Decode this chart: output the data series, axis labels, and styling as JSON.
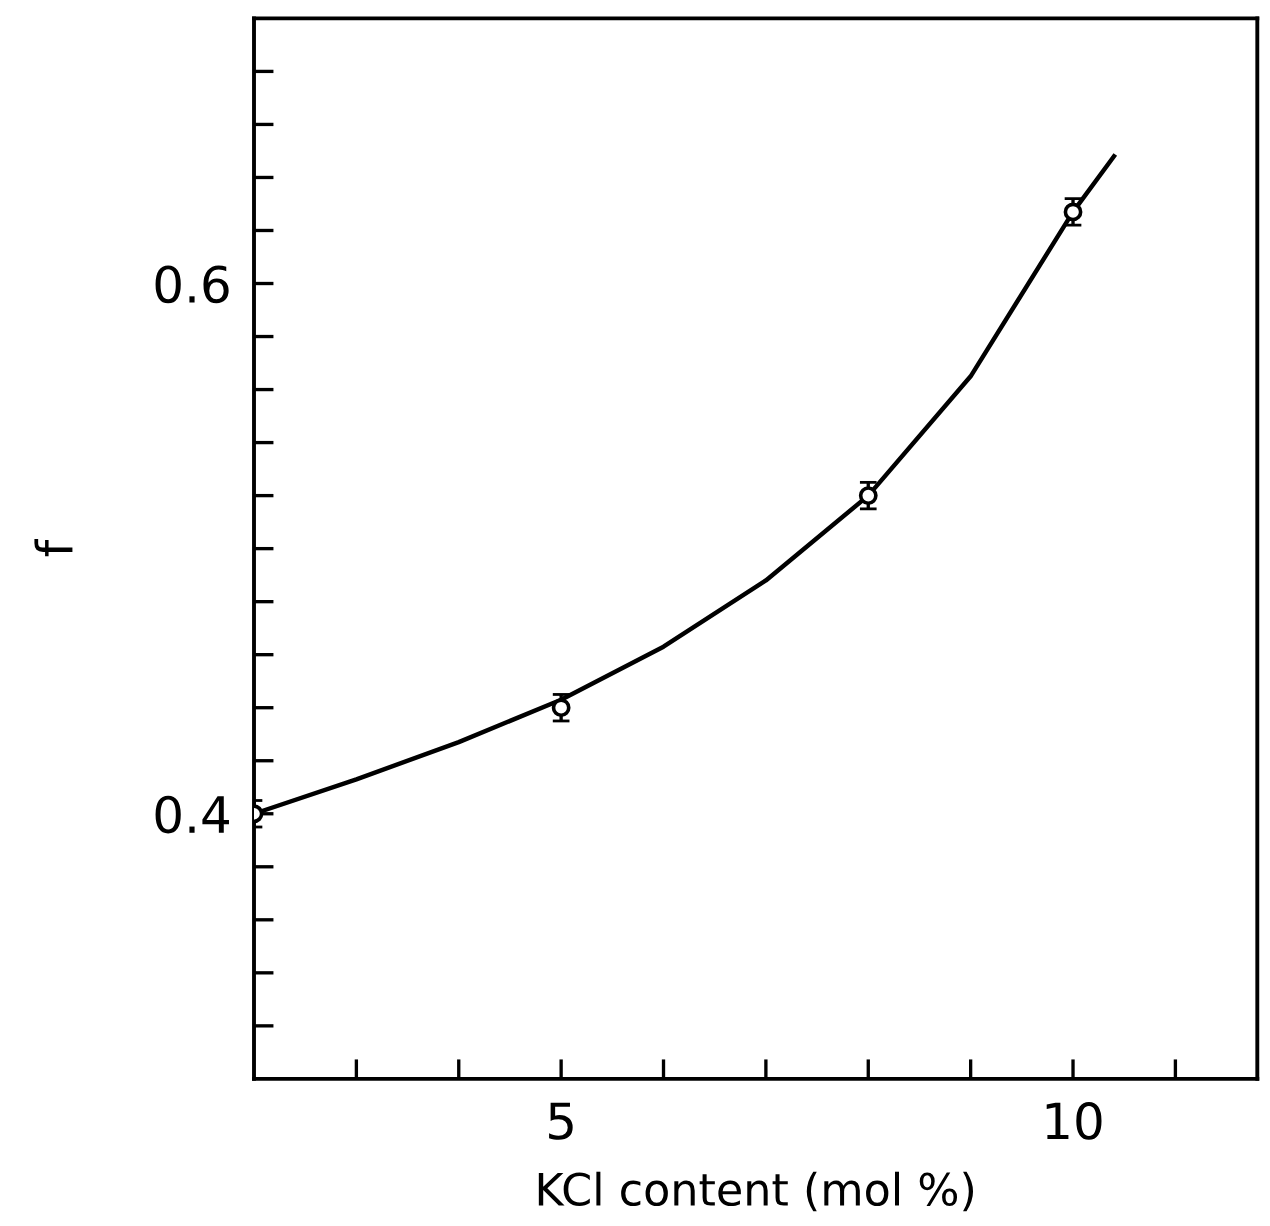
{
  "chart_data": {
    "type": "scatter",
    "xlabel": "KCl content (mol %)",
    "ylabel": "f",
    "series": [
      {
        "color": "#000000",
        "x": [
          2,
          5,
          8,
          10
        ],
        "values": [
          0.4,
          0.44,
          0.52,
          0.627
        ],
        "errors": [
          0.005,
          0.005,
          0.005,
          0.005
        ],
        "marker": "circle"
      },
      {
        "type": "line",
        "color": "#000000",
        "x": [
          2,
          3,
          4,
          5,
          6,
          7,
          8,
          9,
          10,
          10.4
        ],
        "values": [
          0.4,
          0.413,
          0.427,
          0.443,
          0.463,
          0.488,
          0.52,
          0.565,
          0.627,
          0.648
        ],
        "marker": "none",
        "line_style": "solid"
      }
    ],
    "xlim": [
      2,
      11.8
    ],
    "ylim": [
      0.3,
      0.7
    ],
    "xticks": [
      {
        "value": 3,
        "label": null
      },
      {
        "value": 4,
        "label": null
      },
      5,
      {
        "value": 6,
        "label": null
      },
      {
        "value": 7,
        "label": null
      },
      {
        "value": 8,
        "label": null
      },
      {
        "value": 9,
        "label": null
      },
      10,
      {
        "value": 11,
        "label": null
      }
    ],
    "yticks": [
      {
        "value": 0.32,
        "label": null
      },
      {
        "value": 0.34,
        "label": null
      },
      {
        "value": 0.36,
        "label": null
      },
      {
        "value": 0.38,
        "label": null
      },
      {
        "value": 0.4,
        "label": "0.4"
      },
      {
        "value": 0.42,
        "label": null
      },
      {
        "value": 0.44,
        "label": null
      },
      {
        "value": 0.46,
        "label": null
      },
      {
        "value": 0.48,
        "label": null
      },
      {
        "value": 0.5,
        "label": null
      },
      {
        "value": 0.52,
        "label": null
      },
      {
        "value": 0.54,
        "label": null
      },
      {
        "value": 0.56,
        "label": null
      },
      {
        "value": 0.58,
        "label": null
      },
      {
        "value": 0.6,
        "label": "0.6"
      },
      {
        "value": 0.62,
        "label": null
      },
      {
        "value": 0.64,
        "label": null
      },
      {
        "value": 0.66,
        "label": null
      },
      {
        "value": 0.68,
        "label": null
      }
    ],
    "grid": false,
    "legend": false
  }
}
